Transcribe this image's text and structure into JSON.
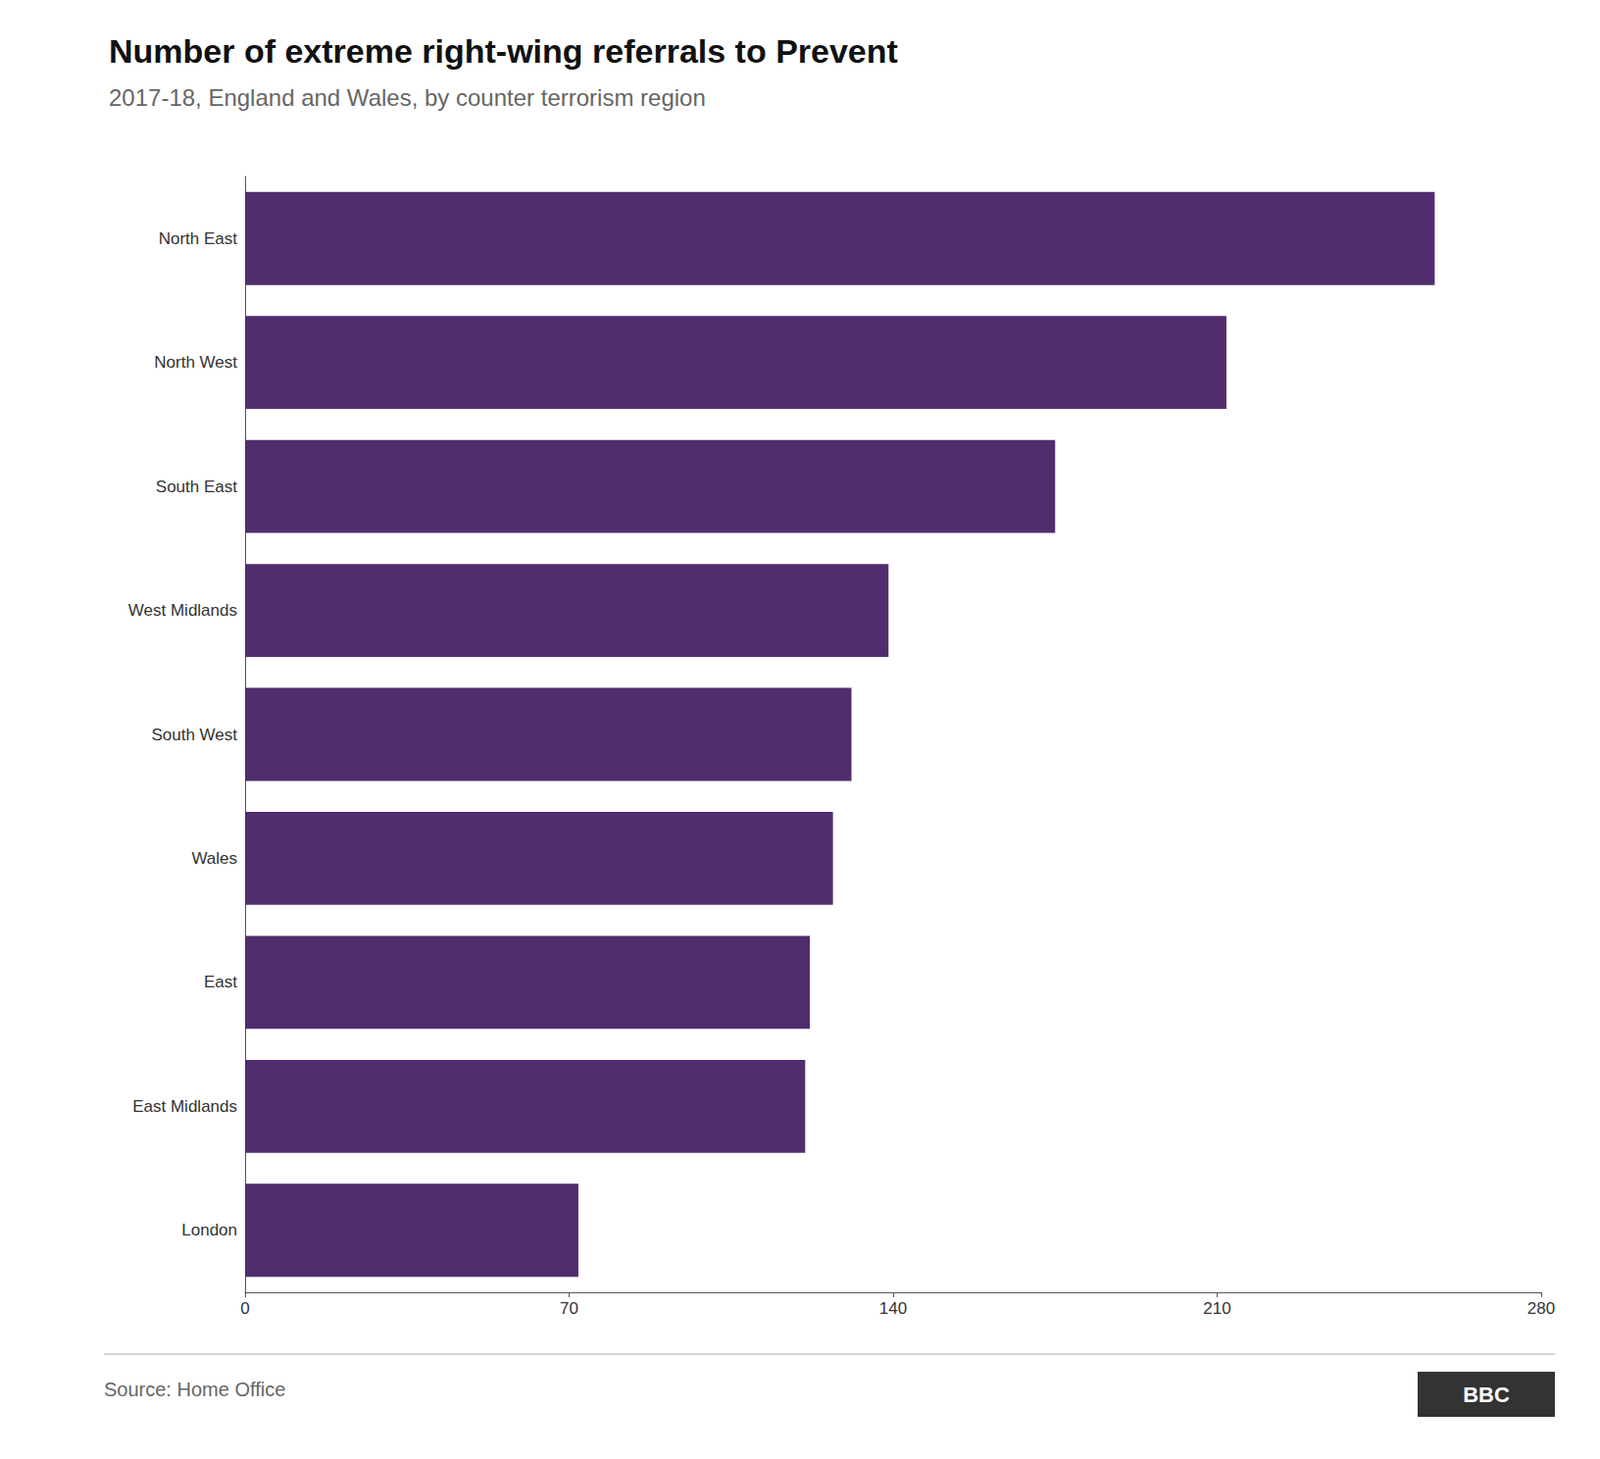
{
  "chart_data": {
    "type": "bar",
    "orientation": "horizontal",
    "title": "Number of extreme right-wing referrals to Prevent",
    "subtitle": "2017-18, England and Wales, by counter terrorism region",
    "source": "Source: Home Office",
    "logo": "BBC",
    "categories": [
      "North East",
      "North West",
      "South East",
      "West Midlands",
      "South West",
      "Wales",
      "East",
      "East Midlands",
      "London"
    ],
    "values": [
      257,
      212,
      175,
      139,
      131,
      127,
      122,
      121,
      72
    ],
    "color": "#512d6d",
    "xlim": [
      0,
      280
    ],
    "xticks": [
      0,
      70,
      140,
      210,
      280
    ],
    "grid": false
  }
}
